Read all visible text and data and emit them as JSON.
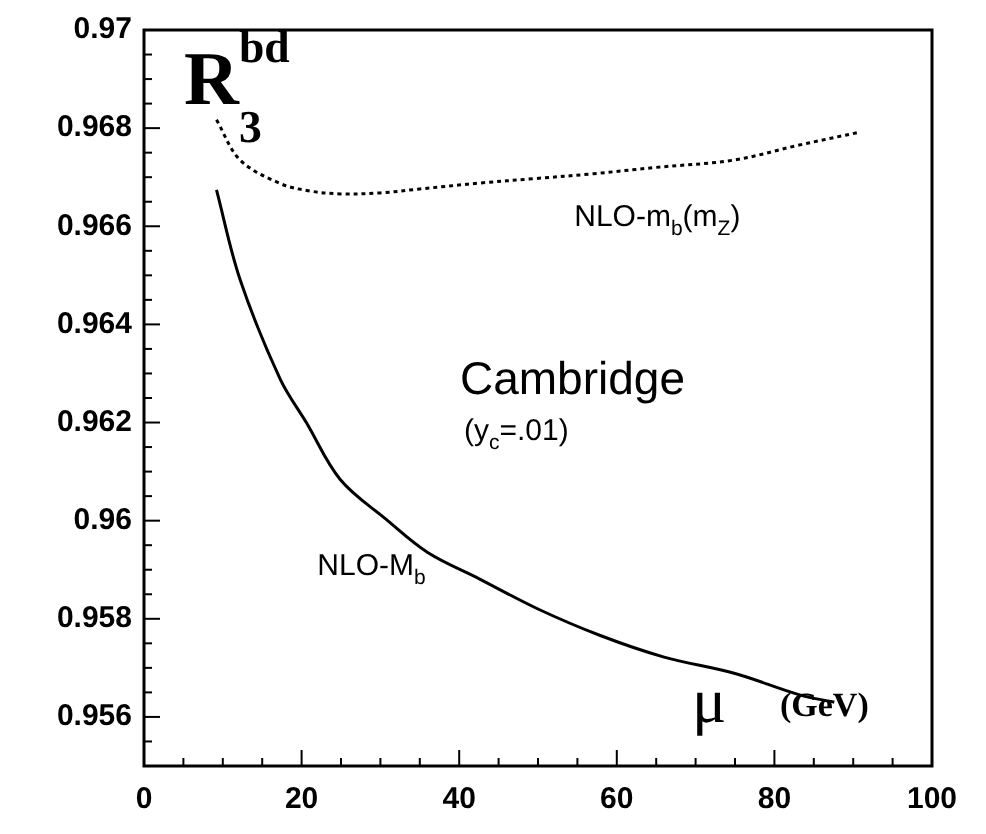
{
  "chart_data": {
    "type": "line",
    "ylabel": "R$^{bd}$$_{3}$",
    "xlabel": "μ (GeV)",
    "annotations": [
      "Cambridge",
      "(y$_{c}$=.01)"
    ],
    "series": [
      {
        "name": "NLO-m$_{b}$(m$_{Z}$)",
        "color": "#000000",
        "line_style": "dotted",
        "x": [
          9.2,
          12.2,
          17.3,
          21,
          24.9,
          30,
          35,
          42.6,
          49.5,
          57,
          65,
          74.9,
          83,
          90.9
        ],
        "values": [
          0.96817,
          0.96735,
          0.96687,
          0.96672,
          0.96666,
          0.96668,
          0.96676,
          0.96688,
          0.96697,
          0.96707,
          0.9672,
          0.96735,
          0.96765,
          0.96792
        ]
      },
      {
        "name": "NLO-M$_{b}$",
        "color": "#000000",
        "line_style": "solid",
        "x": [
          9.2,
          12.2,
          17.3,
          20.6,
          24.9,
          30.7,
          36,
          42.6,
          50,
          57.9,
          66,
          74.9,
          83.2,
          87.6
        ],
        "values": [
          0.96674,
          0.96491,
          0.96288,
          0.962,
          0.96084,
          0.96003,
          0.95935,
          0.95881,
          0.9582,
          0.95766,
          0.95722,
          0.95689,
          0.95645,
          0.9563
        ]
      }
    ],
    "xlim": [
      0,
      100
    ],
    "xticks": [
      0,
      {
        "value": 5,
        "label": null
      },
      20,
      {
        "value": 10,
        "label": null
      },
      {
        "value": 15,
        "label": null
      },
      {
        "value": 25,
        "label": null
      },
      {
        "value": 30,
        "label": null
      },
      {
        "value": 35,
        "label": null
      },
      40,
      {
        "value": 45,
        "label": null
      },
      {
        "value": 50,
        "label": null
      },
      {
        "value": 55,
        "label": null
      },
      60,
      {
        "value": 65,
        "label": null
      },
      {
        "value": 70,
        "label": null
      },
      {
        "value": 75,
        "label": null
      },
      80,
      {
        "value": 85,
        "label": null
      },
      {
        "value": 90,
        "label": null
      },
      {
        "value": 95,
        "label": null
      },
      100
    ],
    "ylim": [
      0.955,
      0.97
    ],
    "yticks": [
      {
        "value": 0.955,
        "label": null
      },
      {
        "value": 0.9555,
        "label": null
      },
      0.956,
      {
        "value": 0.9565,
        "label": null
      },
      {
        "value": 0.957,
        "label": null
      },
      {
        "value": 0.9575,
        "label": null
      },
      0.958,
      {
        "value": 0.9585,
        "label": null
      },
      {
        "value": 0.959,
        "label": null
      },
      {
        "value": 0.9595,
        "label": null
      },
      {
        "value": 0.96,
        "label": "0.96"
      },
      {
        "value": 0.9605,
        "label": null
      },
      {
        "value": 0.961,
        "label": null
      },
      {
        "value": 0.9615,
        "label": null
      },
      0.962,
      {
        "value": 0.9625,
        "label": null
      },
      {
        "value": 0.963,
        "label": null
      },
      {
        "value": 0.9635,
        "label": null
      },
      0.964,
      {
        "value": 0.9645,
        "label": null
      },
      {
        "value": 0.965,
        "label": null
      },
      {
        "value": 0.9655,
        "label": null
      },
      0.966,
      {
        "value": 0.9665,
        "label": null
      },
      {
        "value": 0.967,
        "label": null
      },
      {
        "value": 0.9675,
        "label": null
      },
      0.968,
      {
        "value": 0.9685,
        "label": null
      },
      {
        "value": 0.969,
        "label": null
      },
      {
        "value": 0.9695,
        "label": null
      },
      0.97
    ],
    "grid": false,
    "legend": false,
    "marker": "none"
  }
}
